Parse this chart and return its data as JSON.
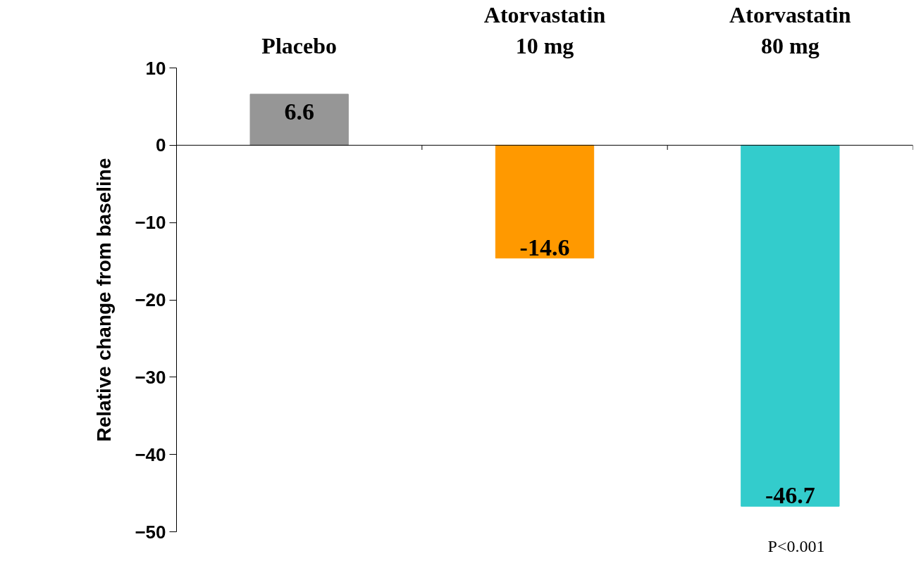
{
  "chart_data": {
    "type": "bar",
    "ylabel": "Relative change from baseline",
    "categories": [
      "Placebo",
      "Atorvastatin\n10 mg",
      "Atorvastatin\n80 mg"
    ],
    "values": [
      6.6,
      -14.6,
      -46.7
    ],
    "colors": [
      "#969696",
      "#ff9900",
      "#33cccc"
    ],
    "ylim": [
      -50,
      10
    ],
    "yticks": [
      -50,
      -40,
      -30,
      -20,
      -10,
      0,
      10
    ],
    "data_labels": true,
    "annotations": [
      "P<0.001"
    ]
  }
}
